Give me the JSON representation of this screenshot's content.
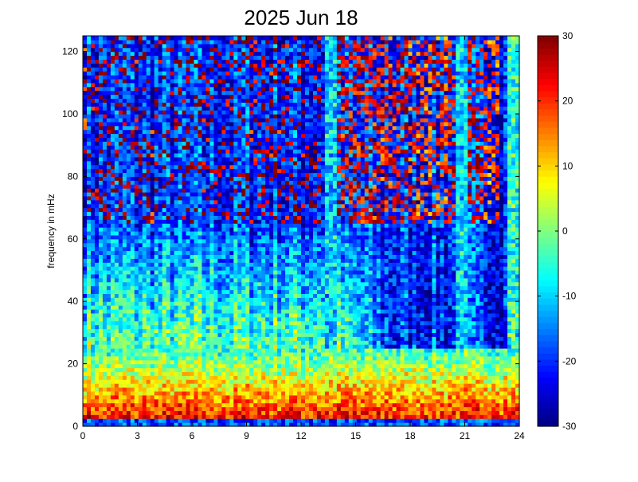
{
  "chart_data": {
    "type": "heatmap",
    "title": "2025 Jun 18",
    "xlabel": "",
    "ylabel": "frequency in mHz",
    "x_ticks": [
      "0",
      "3",
      "6",
      "9",
      "12",
      "15",
      "18",
      "21",
      "24"
    ],
    "y_ticks": [
      "0",
      "20",
      "40",
      "60",
      "80",
      "100",
      "120"
    ],
    "xlim": [
      0,
      24
    ],
    "ylim": [
      0,
      125
    ],
    "colorbar": {
      "ticks": [
        "-30",
        "-20",
        "-10",
        "0",
        "10",
        "20",
        "30"
      ],
      "clim": [
        -30,
        30
      ],
      "colormap": "jet"
    },
    "grid": false,
    "features": {
      "low_frequency_band": {
        "freq_range": [
          0,
          25
        ],
        "level": 25
      },
      "midday_moderate_region": {
        "hours": [
          0,
          13
        ],
        "freq_range": [
          25,
          60
        ],
        "level": -2
      },
      "bright_vertical_streaks": [
        {
          "hour": 13.6,
          "level": -10
        },
        {
          "hour": 20.9,
          "level": -10
        },
        {
          "hour": 23.6,
          "level": -5
        }
      ],
      "background_level": -20,
      "high_frequency_quiet_region": {
        "hours": [
          14,
          23
        ],
        "freq_range": [
          60,
          125
        ],
        "level": 22
      }
    }
  }
}
